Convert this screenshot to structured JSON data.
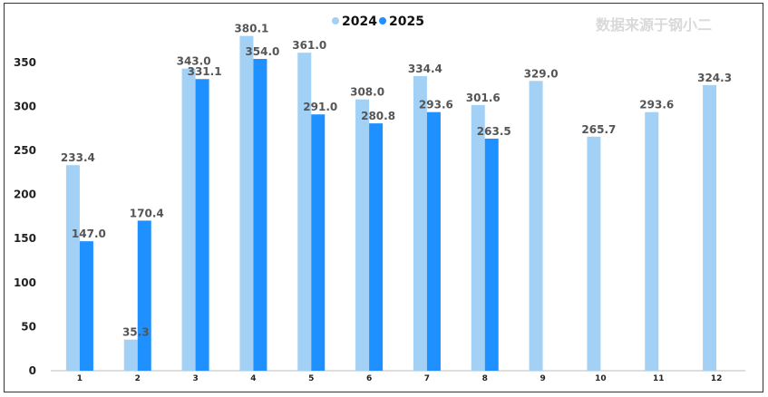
{
  "watermark": "数据来源于钢小二",
  "chart_data": {
    "type": "bar",
    "title": "",
    "xlabel": "",
    "ylabel": "",
    "ylim": [
      0,
      390
    ],
    "yticks": [
      0,
      50,
      100,
      150,
      200,
      250,
      300,
      350
    ],
    "categories": [
      "1",
      "2",
      "3",
      "4",
      "5",
      "6",
      "7",
      "8",
      "9",
      "10",
      "11",
      "12"
    ],
    "legend_position": "top-center",
    "series": [
      {
        "name": "2024",
        "color": "#a3d0f5",
        "values": [
          233.4,
          35.3,
          343.0,
          380.1,
          361.0,
          308.0,
          334.4,
          301.6,
          329.0,
          265.7,
          293.6,
          324.3
        ],
        "labels": [
          "233.4",
          "35.3",
          "343.0",
          "380.1",
          "361.0",
          "308.0",
          "334.4",
          "301.6",
          "329.0",
          "265.7",
          "293.6",
          "324.3"
        ]
      },
      {
        "name": "2025",
        "color": "#1e90ff",
        "values": [
          147.0,
          170.4,
          331.1,
          354.0,
          291.0,
          280.8,
          293.6,
          263.5,
          null,
          null,
          null,
          null
        ],
        "labels": [
          "147.0",
          "170.4",
          "331.1",
          "354.0",
          "291.0",
          "280.8",
          "293.6",
          "263.5",
          null,
          null,
          null,
          null
        ]
      }
    ]
  }
}
